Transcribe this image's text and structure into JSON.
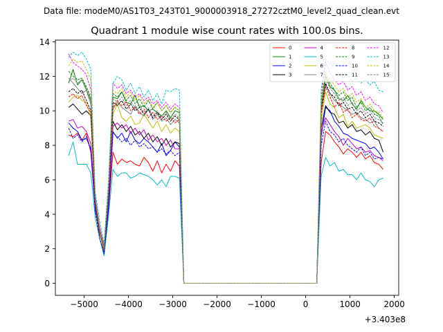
{
  "suptitle": "Data file: modeM0/AS1T03_243T01_9000003918_27272cztM0_level2_quad_clean.evt",
  "chart_data": {
    "type": "line",
    "title": "Quadrant 1 module wise count rates with 100.0s bins.",
    "xlabel": "",
    "ylabel": "",
    "x_offset_label": "+3.403e8",
    "xlim": [
      -5650,
      2100
    ],
    "ylim": [
      -0.7,
      14.1
    ],
    "xticks": [
      -5000,
      -4000,
      -3000,
      -2000,
      -1000,
      0,
      1000,
      2000
    ],
    "xtick_labels": [
      "−5000",
      "−4000",
      "−3000",
      "−2000",
      "−1000",
      "0",
      "1000",
      "2000"
    ],
    "yticks": [
      0,
      2,
      4,
      6,
      8,
      10,
      12,
      14
    ],
    "ytick_labels": [
      "0",
      "2",
      "4",
      "6",
      "8",
      "10",
      "12",
      "14"
    ],
    "legend_position": "top-right",
    "segments": [
      {
        "start": -5350,
        "n": 27,
        "step": 100
      },
      {
        "start": 250,
        "n": 16,
        "step": 100
      }
    ],
    "series": [
      {
        "name": "0",
        "color": "#ff0000",
        "dash": false,
        "seg1": [
          8.6,
          8.5,
          8.7,
          8.3,
          8.7,
          7.6,
          4.2,
          3.0,
          2.0,
          4.3,
          7.6,
          6.9,
          7.2,
          7.0,
          7.1,
          6.9,
          6.8,
          7.3,
          7.0,
          6.5,
          7.1,
          6.4,
          6.9,
          6.5,
          7.1,
          6.8,
          0.0
        ],
        "seg2": [
          0.0,
          7.0,
          8.8,
          8.6,
          8.2,
          7.9,
          7.5,
          7.8,
          7.6,
          7.3,
          7.6,
          7.2,
          7.4,
          7.0,
          6.9,
          6.6
        ]
      },
      {
        "name": "1",
        "color": "#008000",
        "dash": false,
        "seg1": [
          11.6,
          12.4,
          11.5,
          11.8,
          11.2,
          10.6,
          4.8,
          3.0,
          1.8,
          5.2,
          10.8,
          10.7,
          11.1,
          10.5,
          10.4,
          10.9,
          10.2,
          10.3,
          10.0,
          10.1,
          9.9,
          9.7,
          10.0,
          9.6,
          10.0,
          9.9,
          0.0
        ],
        "seg2": [
          0.0,
          10.2,
          12.0,
          11.4,
          11.2,
          10.7,
          10.6,
          10.9,
          10.4,
          10.1,
          10.6,
          10.2,
          10.0,
          10.0,
          9.8,
          9.5
        ]
      },
      {
        "name": "2",
        "color": "#0000ff",
        "dash": false,
        "seg1": [
          9.3,
          9.0,
          8.8,
          8.3,
          8.4,
          7.8,
          4.3,
          3.0,
          2.0,
          4.3,
          8.8,
          8.4,
          8.7,
          8.2,
          8.8,
          8.3,
          8.1,
          8.4,
          8.2,
          7.9,
          7.6,
          8.1,
          7.4,
          7.7,
          8.2,
          7.9,
          0.0
        ],
        "seg2": [
          0.0,
          8.5,
          10.2,
          10.0,
          9.4,
          9.1,
          8.7,
          8.6,
          8.4,
          8.3,
          8.2,
          8.1,
          7.8,
          7.9,
          7.6,
          7.2
        ]
      },
      {
        "name": "3",
        "color": "#000000",
        "dash": false,
        "seg1": [
          10.2,
          10.4,
          10.1,
          9.8,
          10.0,
          9.7,
          4.8,
          2.6,
          1.7,
          5.0,
          9.4,
          8.9,
          9.2,
          8.8,
          9.1,
          8.6,
          8.8,
          8.4,
          8.7,
          8.2,
          8.5,
          8.0,
          8.4,
          7.9,
          8.2,
          8.1,
          0.0
        ],
        "seg2": [
          0.0,
          9.0,
          10.3,
          9.9,
          9.8,
          9.3,
          9.4,
          9.0,
          9.2,
          8.8,
          8.9,
          8.6,
          8.8,
          8.4,
          8.3,
          7.6
        ]
      },
      {
        "name": "4",
        "color": "#c000c0",
        "dash": false,
        "seg1": [
          9.4,
          9.5,
          9.0,
          9.1,
          8.8,
          8.1,
          4.5,
          3.1,
          2.2,
          4.6,
          9.1,
          9.3,
          9.0,
          9.2,
          8.7,
          9.0,
          8.6,
          8.9,
          8.3,
          8.6,
          8.2,
          8.4,
          8.0,
          8.3,
          7.8,
          7.8,
          0.0
        ],
        "seg2": [
          0.0,
          8.8,
          9.6,
          9.2,
          8.8,
          8.5,
          8.0,
          8.4,
          8.1,
          7.8,
          7.9,
          7.6,
          7.7,
          7.4,
          7.3,
          7.1
        ]
      },
      {
        "name": "5",
        "color": "#00bfbf",
        "dash": false,
        "seg1": [
          7.4,
          8.2,
          6.9,
          6.9,
          6.9,
          6.4,
          3.8,
          2.6,
          1.6,
          3.9,
          6.6,
          6.2,
          6.4,
          6.4,
          6.1,
          6.2,
          6.4,
          6.3,
          6.2,
          6.0,
          5.7,
          6.0,
          5.6,
          6.2,
          6.2,
          6.1,
          0.0
        ],
        "seg2": [
          0.0,
          6.2,
          7.3,
          6.8,
          7.0,
          6.5,
          6.6,
          6.3,
          6.3,
          6.0,
          6.4,
          6.0,
          5.9,
          5.6,
          6.0,
          6.1
        ]
      },
      {
        "name": "6",
        "color": "#bfbf00",
        "dash": false,
        "seg1": [
          10.5,
          10.8,
          10.9,
          10.6,
          10.5,
          9.6,
          4.7,
          2.9,
          1.9,
          5.2,
          9.8,
          10.4,
          9.6,
          9.4,
          9.7,
          9.2,
          9.3,
          9.8,
          9.4,
          9.0,
          9.4,
          8.8,
          9.2,
          8.7,
          9.0,
          8.8,
          0.0
        ],
        "seg2": [
          0.0,
          9.4,
          11.1,
          10.4,
          10.2,
          9.6,
          9.8,
          9.1,
          9.4,
          9.0,
          9.1,
          9.2,
          9.0,
          8.6,
          8.5,
          8.4
        ]
      },
      {
        "name": "7",
        "color": "#808080",
        "dash": false,
        "seg1": [
          11.9,
          11.6,
          11.3,
          11.0,
          11.2,
          10.4,
          4.6,
          3.0,
          2.0,
          5.1,
          10.1,
          10.5,
          10.2,
          10.0,
          9.8,
          10.3,
          9.9,
          9.7,
          10.1,
          9.5,
          9.8,
          9.4,
          9.6,
          9.2,
          9.5,
          9.3,
          0.0
        ],
        "seg2": [
          0.0,
          10.0,
          11.5,
          11.0,
          10.6,
          10.4,
          10.2,
          10.0,
          9.8,
          9.9,
          9.6,
          9.5,
          9.3,
          9.4,
          9.0,
          8.8
        ]
      },
      {
        "name": "8",
        "color": "#ff0000",
        "dash": true,
        "seg1": [
          10.8,
          11.0,
          10.7,
          10.9,
          10.3,
          9.9,
          4.7,
          3.0,
          1.9,
          5.0,
          10.2,
          10.6,
          10.3,
          10.5,
          10.0,
          10.2,
          9.8,
          10.1,
          9.6,
          9.9,
          9.5,
          9.7,
          9.4,
          9.6,
          9.3,
          9.5,
          0.0
        ],
        "seg2": [
          0.0,
          9.8,
          11.4,
          10.8,
          10.2,
          10.5,
          9.9,
          10.1,
          9.6,
          9.8,
          9.5,
          9.4,
          9.6,
          9.1,
          9.0,
          8.8
        ]
      },
      {
        "name": "9",
        "color": "#008000",
        "dash": true,
        "seg1": [
          12.3,
          12.0,
          11.8,
          11.9,
          11.4,
          10.8,
          4.9,
          3.2,
          2.1,
          5.4,
          11.0,
          10.8,
          11.1,
          10.6,
          10.9,
          10.4,
          10.7,
          10.2,
          10.6,
          10.1,
          10.5,
          10.0,
          10.3,
          9.9,
          10.2,
          10.0,
          0.0
        ],
        "seg2": [
          0.0,
          10.5,
          12.1,
          11.6,
          11.2,
          10.9,
          11.1,
          10.6,
          10.8,
          10.2,
          10.5,
          10.0,
          10.2,
          9.8,
          9.7,
          9.2
        ]
      },
      {
        "name": "10",
        "color": "#0000ff",
        "dash": true,
        "seg1": [
          9.0,
          8.4,
          8.6,
          8.2,
          8.5,
          7.7,
          4.2,
          2.6,
          1.7,
          4.3,
          8.7,
          8.5,
          8.2,
          8.4,
          8.0,
          8.3,
          7.9,
          8.1,
          7.8,
          7.9,
          7.6,
          7.8,
          7.5,
          7.7,
          7.4,
          7.6,
          0.0
        ],
        "seg2": [
          0.0,
          8.0,
          9.4,
          8.8,
          8.6,
          8.2,
          8.4,
          8.0,
          7.8,
          7.6,
          7.9,
          7.4,
          7.6,
          7.2,
          7.3,
          7.2
        ]
      },
      {
        "name": "11",
        "color": "#000000",
        "dash": true,
        "seg1": [
          11.1,
          11.3,
          11.0,
          11.2,
          10.6,
          10.0,
          4.8,
          3.1,
          2.0,
          5.2,
          10.5,
          10.3,
          10.6,
          10.1,
          10.4,
          10.0,
          10.2,
          9.8,
          10.1,
          9.6,
          9.9,
          9.5,
          9.8,
          9.4,
          9.7,
          9.5,
          0.0
        ],
        "seg2": [
          0.0,
          10.0,
          11.6,
          11.0,
          10.8,
          10.3,
          10.5,
          10.1,
          10.2,
          9.8,
          10.0,
          9.6,
          9.8,
          9.4,
          9.3,
          9.1
        ]
      },
      {
        "name": "12",
        "color": "#ff00ff",
        "dash": true,
        "seg1": [
          13.3,
          12.8,
          12.6,
          12.4,
          12.1,
          11.2,
          5.1,
          3.3,
          2.2,
          5.6,
          11.6,
          11.3,
          11.5,
          11.0,
          11.2,
          10.8,
          11.0,
          10.6,
          10.8,
          10.4,
          10.6,
          10.2,
          10.5,
          10.1,
          10.4,
          10.2,
          0.0
        ],
        "seg2": [
          0.0,
          10.8,
          12.8,
          12.2,
          11.8,
          11.5,
          11.7,
          11.2,
          11.4,
          10.9,
          11.1,
          10.6,
          10.8,
          10.4,
          10.3,
          9.9
        ]
      },
      {
        "name": "13",
        "color": "#00bfbf",
        "dash": true,
        "seg1": [
          13.1,
          13.4,
          13.2,
          13.4,
          13.0,
          12.4,
          5.3,
          3.6,
          2.3,
          6.0,
          11.6,
          12.0,
          11.8,
          11.2,
          11.6,
          11.0,
          11.4,
          10.8,
          11.2,
          10.6,
          11.0,
          10.4,
          11.2,
          11.1,
          11.3,
          11.2,
          0.0
        ],
        "seg2": [
          0.0,
          11.2,
          13.0,
          12.8,
          12.4,
          12.2,
          11.9,
          12.1,
          11.7,
          11.9,
          11.6,
          11.8,
          11.5,
          11.7,
          11.2,
          11.1
        ]
      },
      {
        "name": "14",
        "color": "#bfbf00",
        "dash": true,
        "seg1": [
          12.6,
          13.0,
          12.8,
          12.9,
          12.4,
          11.8,
          5.0,
          3.2,
          2.1,
          5.5,
          11.2,
          11.0,
          11.3,
          10.8,
          11.1,
          10.6,
          10.9,
          10.4,
          10.7,
          10.2,
          10.5,
          10.0,
          10.3,
          9.9,
          10.2,
          10.0,
          0.0
        ],
        "seg2": [
          0.0,
          10.6,
          12.3,
          11.8,
          11.5,
          11.1,
          11.3,
          10.8,
          11.0,
          10.5,
          10.7,
          10.2,
          10.4,
          10.0,
          9.9,
          9.6
        ]
      },
      {
        "name": "15",
        "color": "#808080",
        "dash": true,
        "seg1": [
          11.7,
          11.9,
          11.6,
          11.8,
          11.3,
          10.7,
          4.9,
          3.1,
          2.0,
          5.3,
          10.7,
          10.5,
          10.8,
          10.3,
          10.6,
          10.1,
          10.4,
          9.9,
          10.2,
          9.7,
          10.0,
          9.6,
          9.9,
          9.5,
          9.8,
          9.6,
          0.0
        ],
        "seg2": [
          0.0,
          10.2,
          11.8,
          11.3,
          11.0,
          10.6,
          10.8,
          10.3,
          10.5,
          10.0,
          10.2,
          9.8,
          10.0,
          9.6,
          9.5,
          9.3
        ]
      }
    ]
  }
}
